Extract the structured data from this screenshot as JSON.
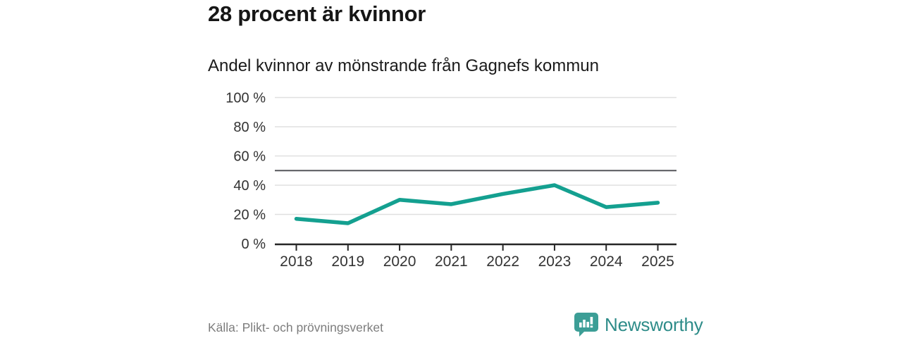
{
  "header": {
    "title": "28 procent är kvinnor",
    "subtitle": "Andel kvinnor av mönstrande från Gagnefs kommun"
  },
  "chart_data": {
    "type": "line",
    "title": "28 procent är kvinnor",
    "subtitle": "Andel kvinnor av mönstrande från Gagnefs kommun",
    "categories": [
      "2018",
      "2019",
      "2020",
      "2021",
      "2022",
      "2023",
      "2024",
      "2025"
    ],
    "values": [
      17,
      14,
      30,
      27,
      34,
      40,
      25,
      28
    ],
    "xlabel": "",
    "ylabel": "",
    "ylim": [
      0,
      100
    ],
    "y_ticks": [
      0,
      20,
      40,
      60,
      80,
      100
    ],
    "y_tick_suffix": " %",
    "reference_line": 50,
    "grid": true,
    "legend_position": "none",
    "line_color": "#14a090",
    "gridline_color": "#e0e0e0",
    "reference_line_color": "#55565a",
    "axis_color": "#262626",
    "tick_label_color": "#333333"
  },
  "footer": {
    "source": "Källa: Plikt- och prövningsverket",
    "brand": "Newsworthy"
  },
  "colors": {
    "accent": "#14a090",
    "logo_badge": "#3c9e96",
    "logo_text": "#2e8c89",
    "title_text": "#161616",
    "source_text": "#7d7d7d"
  }
}
